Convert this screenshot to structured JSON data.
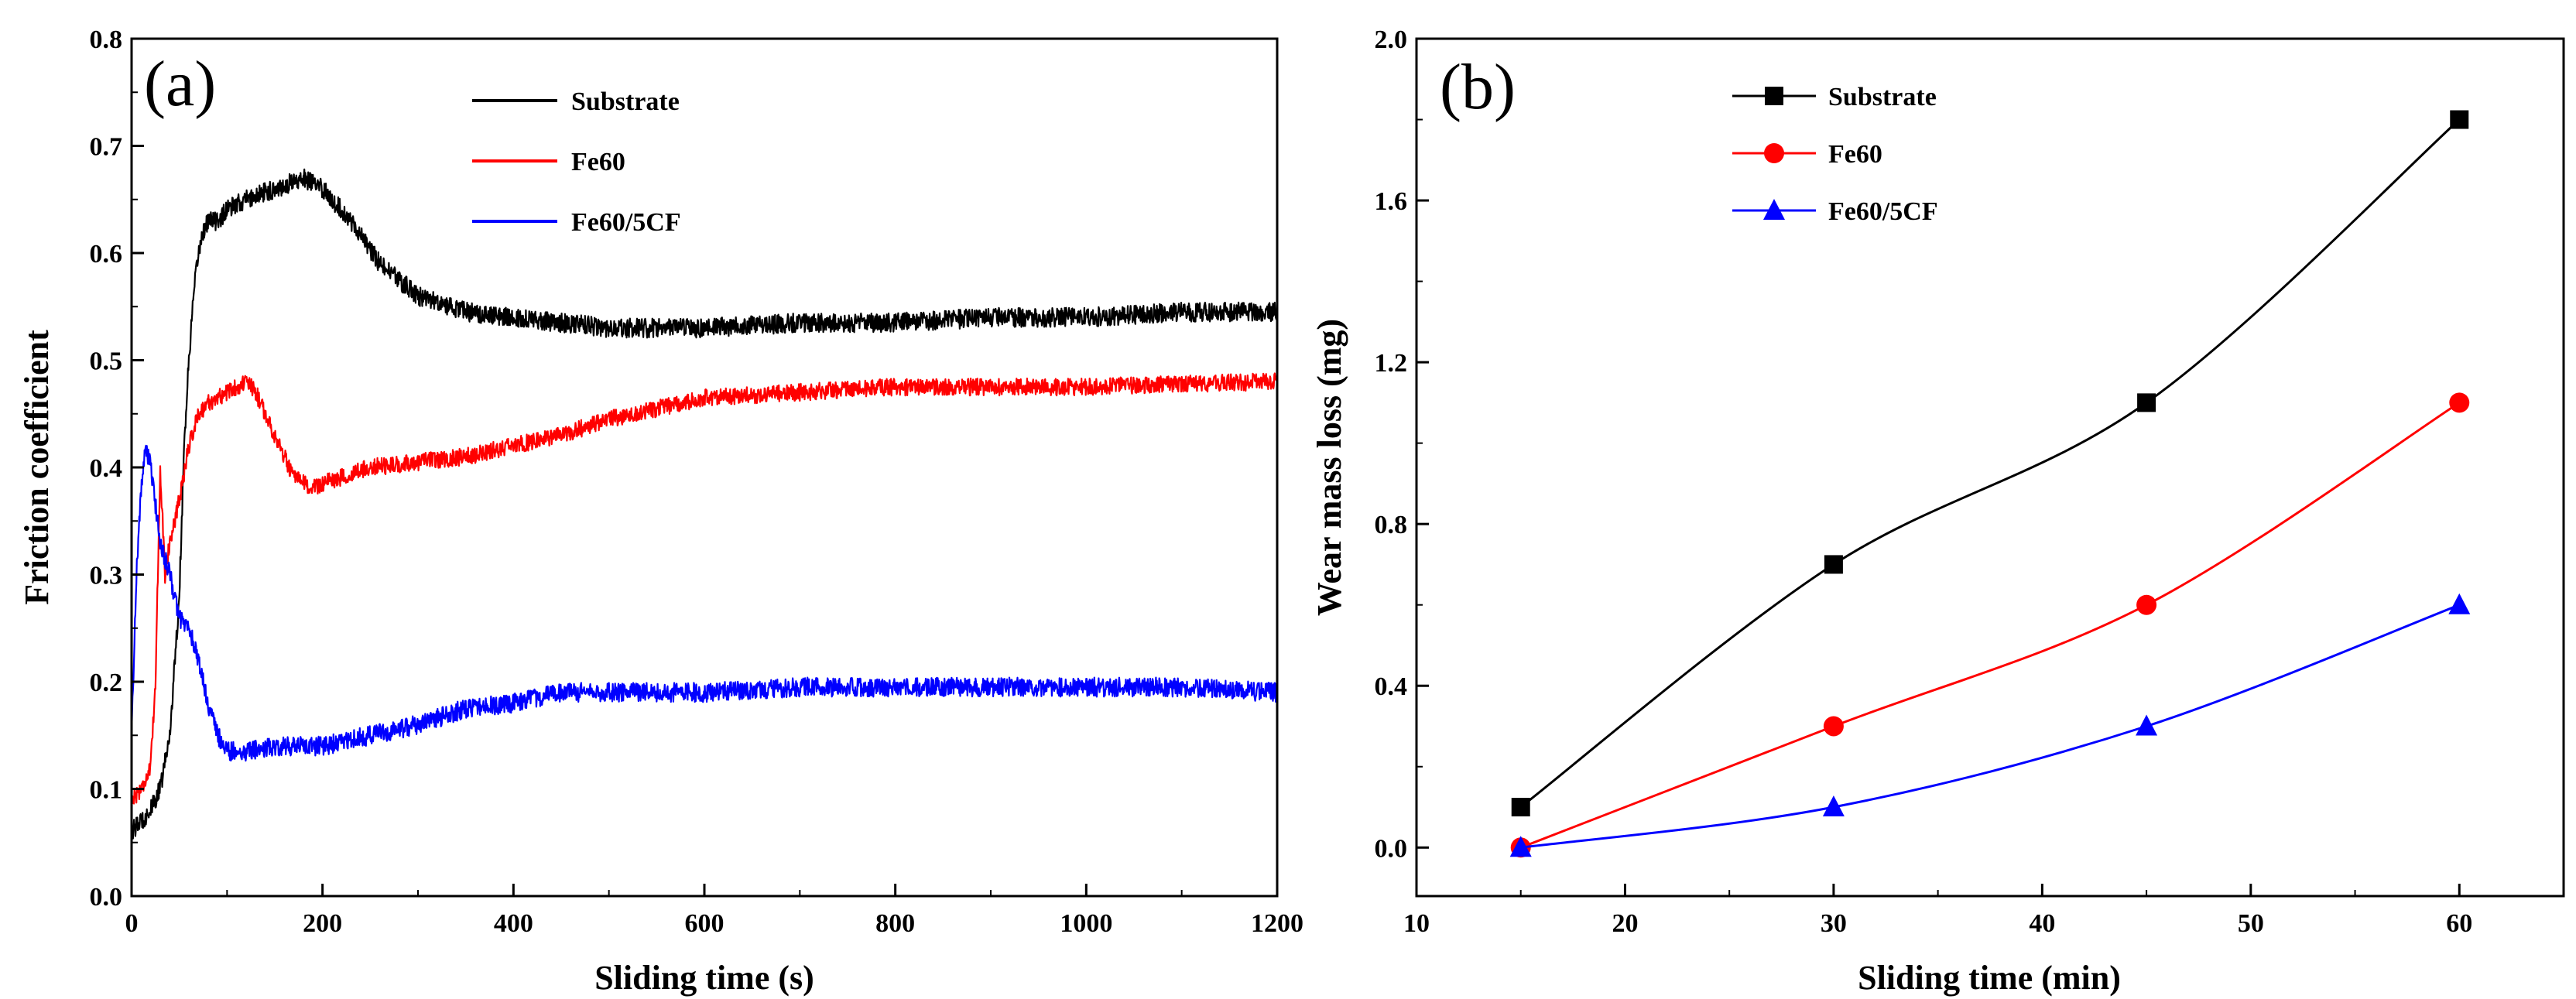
{
  "figure": "friction-and-wear-figure",
  "chart_data": [
    {
      "id": "a",
      "type": "line",
      "panel_label": "(a)",
      "title": "",
      "xlabel": "Sliding time (s)",
      "ylabel": "Friction coefficient",
      "xlim": [
        0,
        1200
      ],
      "ylim": [
        0.0,
        0.8
      ],
      "xticks": [
        0,
        200,
        400,
        600,
        800,
        1000,
        1200
      ],
      "xtick_labels": [
        "0",
        "200",
        "400",
        "600",
        "800",
        "1000",
        "1200"
      ],
      "yticks": [
        0.0,
        0.1,
        0.2,
        0.3,
        0.4,
        0.5,
        0.6,
        0.7,
        0.8
      ],
      "ytick_labels": [
        "0.0",
        "0.1",
        "0.2",
        "0.3",
        "0.4",
        "0.5",
        "0.6",
        "0.7",
        "0.8"
      ],
      "grid": false,
      "legend_position": "top-center",
      "series": [
        {
          "name": "Substrate",
          "color": "#000000",
          "noise": 0.009,
          "x": [
            0,
            10,
            20,
            30,
            40,
            50,
            55,
            60,
            65,
            70,
            75,
            80,
            90,
            100,
            120,
            150,
            180,
            200,
            230,
            260,
            300,
            350,
            400,
            450,
            500,
            600,
            700,
            800,
            900,
            1000,
            1100,
            1200
          ],
          "y": [
            0.06,
            0.07,
            0.08,
            0.1,
            0.15,
            0.28,
            0.42,
            0.5,
            0.56,
            0.6,
            0.62,
            0.63,
            0.63,
            0.64,
            0.65,
            0.66,
            0.67,
            0.66,
            0.63,
            0.59,
            0.56,
            0.545,
            0.54,
            0.535,
            0.53,
            0.53,
            0.535,
            0.535,
            0.54,
            0.54,
            0.545,
            0.545
          ]
        },
        {
          "name": "Fe60",
          "color": "#ff0000",
          "noise": 0.008,
          "x": [
            0,
            10,
            20,
            25,
            30,
            35,
            40,
            50,
            60,
            70,
            80,
            100,
            120,
            130,
            150,
            170,
            190,
            200,
            250,
            300,
            350,
            400,
            450,
            500,
            550,
            600,
            700,
            800,
            900,
            1000,
            1100,
            1200
          ],
          "y": [
            0.09,
            0.1,
            0.12,
            0.2,
            0.4,
            0.3,
            0.33,
            0.37,
            0.42,
            0.45,
            0.46,
            0.47,
            0.48,
            0.47,
            0.43,
            0.39,
            0.38,
            0.385,
            0.4,
            0.405,
            0.41,
            0.42,
            0.43,
            0.445,
            0.455,
            0.465,
            0.47,
            0.475,
            0.475,
            0.475,
            0.478,
            0.48
          ]
        },
        {
          "name": "Fe60/5CF",
          "color": "#0000ff",
          "noise": 0.009,
          "x": [
            0,
            5,
            10,
            15,
            20,
            30,
            40,
            50,
            60,
            70,
            80,
            90,
            100,
            120,
            150,
            200,
            250,
            300,
            350,
            400,
            450,
            500,
            550,
            600,
            700,
            800,
            900,
            1000,
            1100,
            1200
          ],
          "y": [
            0.15,
            0.3,
            0.38,
            0.42,
            0.4,
            0.33,
            0.3,
            0.26,
            0.25,
            0.22,
            0.18,
            0.15,
            0.135,
            0.135,
            0.14,
            0.14,
            0.15,
            0.16,
            0.175,
            0.18,
            0.19,
            0.19,
            0.19,
            0.19,
            0.195,
            0.195,
            0.195,
            0.195,
            0.195,
            0.19
          ]
        }
      ]
    },
    {
      "id": "b",
      "type": "line",
      "panel_label": "(b)",
      "title": "",
      "xlabel": "Sliding time (min)",
      "ylabel": "Wear mass loss (mg)",
      "xlim": [
        10,
        65
      ],
      "ylim": [
        -0.12,
        2.0
      ],
      "xticks": [
        10,
        20,
        30,
        40,
        50,
        60
      ],
      "xtick_labels": [
        "10",
        "20",
        "30",
        "40",
        "50",
        "60"
      ],
      "yticks": [
        0.0,
        0.4,
        0.8,
        1.2,
        1.6,
        2.0
      ],
      "ytick_labels": [
        "0.0",
        "0.4",
        "0.8",
        "1.2",
        "1.6",
        "2.0"
      ],
      "grid": false,
      "legend_position": "top-center",
      "x": [
        15,
        30,
        45,
        60
      ],
      "series": [
        {
          "name": "Substrate",
          "color": "#000000",
          "marker": "square",
          "values": [
            0.1,
            0.7,
            1.1,
            1.8
          ]
        },
        {
          "name": "Fe60",
          "color": "#ff0000",
          "marker": "circle",
          "values": [
            0.0,
            0.3,
            0.6,
            1.1
          ]
        },
        {
          "name": "Fe60/5CF",
          "color": "#0000ff",
          "marker": "triangle",
          "values": [
            0.0,
            0.1,
            0.3,
            0.6
          ]
        }
      ]
    }
  ]
}
